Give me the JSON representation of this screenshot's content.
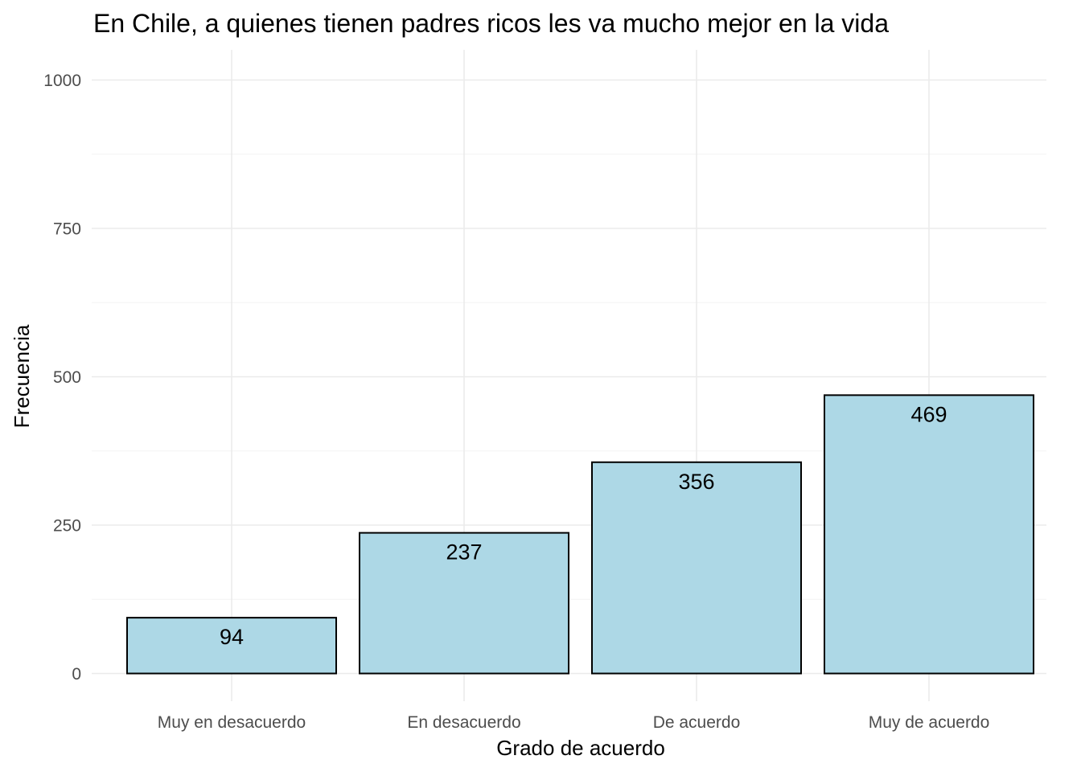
{
  "chart_data": {
    "type": "bar",
    "title": "En Chile, a quienes tienen padres ricos les va mucho mejor en la vida",
    "xlabel": "Grado de acuerdo",
    "ylabel": "Frecuencia",
    "categories": [
      "Muy en desacuerdo",
      "En desacuerdo",
      "De acuerdo",
      "Muy de acuerdo"
    ],
    "values": [
      94,
      237,
      356,
      469
    ],
    "data_labels": [
      "94",
      "237",
      "356",
      "469"
    ],
    "yticks": [
      0,
      250,
      500,
      750,
      1000
    ],
    "ytick_labels": [
      "0",
      "250",
      "500",
      "750",
      "1000"
    ],
    "ylim": [
      0,
      1000
    ],
    "grid": true,
    "legend": "none",
    "colors": {
      "bar_fill": "#add8e6",
      "bar_outline": "#000000"
    }
  }
}
